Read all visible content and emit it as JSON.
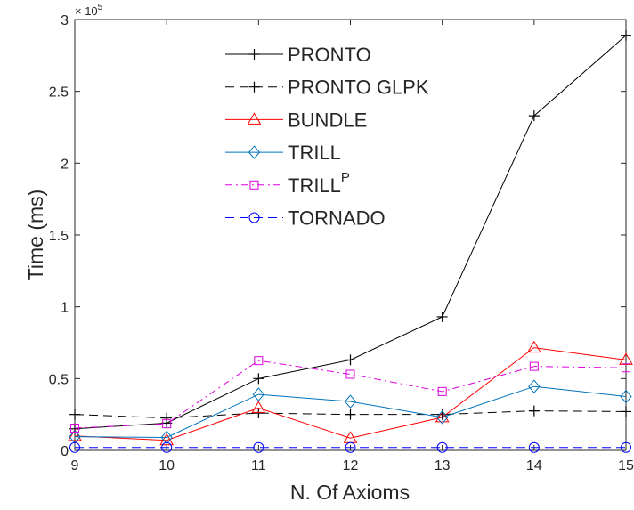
{
  "chart_data": {
    "type": "line",
    "xlabel": "N. Of Axioms",
    "ylabel": "Time (ms)",
    "y_exponent_label": "× 10",
    "y_exponent_power": "5",
    "x": [
      9,
      10,
      11,
      12,
      13,
      14,
      15
    ],
    "xlim": [
      9,
      15
    ],
    "ylim": [
      0,
      300000
    ],
    "x_ticks": [
      9,
      10,
      11,
      12,
      13,
      14,
      15
    ],
    "x_tick_labels": [
      "9",
      "10",
      "11",
      "12",
      "13",
      "14",
      "15"
    ],
    "y_ticks": [
      0,
      50000,
      100000,
      150000,
      200000,
      250000,
      300000
    ],
    "y_tick_labels": [
      "0",
      "0.5",
      "1",
      "1.5",
      "2",
      "2.5",
      "3"
    ],
    "grid": false,
    "legend_position": "top-center",
    "series": [
      {
        "name": "PRONTO",
        "name_sup": "",
        "color": "#000000",
        "dash": "",
        "marker": "plus",
        "values": [
          15000,
          19000,
          50000,
          63000,
          93000,
          233000,
          289000
        ]
      },
      {
        "name": "PRONTO GLPK",
        "name_sup": "",
        "color": "#000000",
        "dash": "10,6",
        "marker": "plus",
        "values": [
          25000,
          22500,
          26000,
          25000,
          25000,
          27500,
          27000
        ]
      },
      {
        "name": "BUNDLE",
        "name_sup": "",
        "color": "#ff0000",
        "dash": "",
        "marker": "triangle",
        "values": [
          10000,
          7000,
          29500,
          8500,
          23000,
          71500,
          63000
        ]
      },
      {
        "name": "TRILL",
        "name_sup": "",
        "color": "#0072bd",
        "dash": "",
        "marker": "diamond",
        "values": [
          9500,
          9000,
          39000,
          34000,
          23000,
          44500,
          37500
        ]
      },
      {
        "name": "TRILL",
        "name_sup": "P",
        "color": "#dd00dd",
        "dash": "8,4,2,4",
        "marker": "square",
        "values": [
          15500,
          18500,
          62500,
          53000,
          41000,
          58500,
          57500
        ]
      },
      {
        "name": "TORNADO",
        "name_sup": "",
        "color": "#0000ff",
        "dash": "10,6",
        "marker": "circle",
        "values": [
          2000,
          2000,
          2000,
          2000,
          2000,
          2000,
          2000
        ]
      }
    ]
  }
}
